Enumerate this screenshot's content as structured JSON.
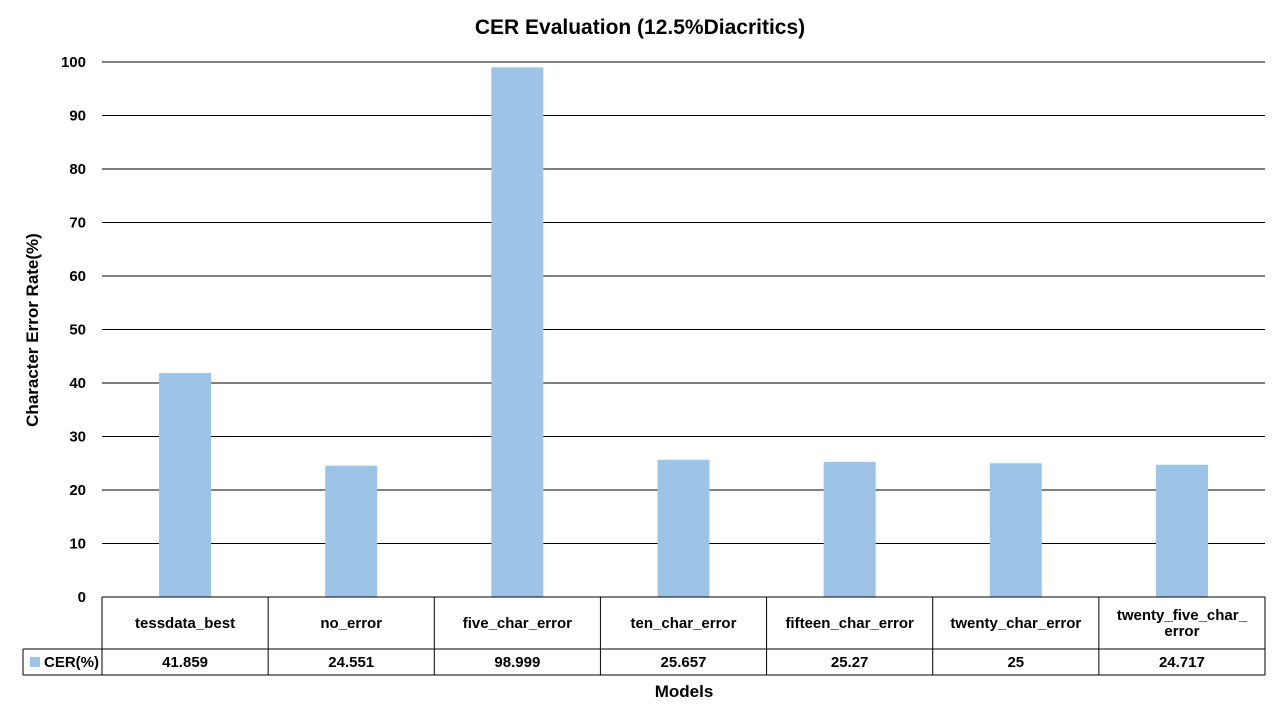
{
  "chart_data": {
    "type": "bar",
    "title": "CER Evaluation (12.5%Diacritics)",
    "xlabel": "Models",
    "ylabel": "Character Error Rate(%)",
    "ylim": [
      0,
      100
    ],
    "yticks": [
      0,
      10,
      20,
      30,
      40,
      50,
      60,
      70,
      80,
      90,
      100
    ],
    "grid": true,
    "categories": [
      [
        "tessdata_best"
      ],
      [
        "no_error"
      ],
      [
        "five_char_error"
      ],
      [
        "ten_char_error"
      ],
      [
        "fifteen_char_error"
      ],
      [
        "twenty_char_error"
      ],
      [
        "twenty_five_char_",
        "error"
      ]
    ],
    "series": [
      {
        "name": "CER(%)",
        "values": [
          41.859,
          24.551,
          98.999,
          25.657,
          25.27,
          25,
          24.717
        ],
        "value_labels": [
          "41.859",
          "24.551",
          "98.999",
          "25.657",
          "25.27",
          "25",
          "24.717"
        ]
      }
    ],
    "data_table": true,
    "colors": {
      "bar": "#9DC3E6",
      "grid": "#000000",
      "text": "#000000"
    }
  }
}
